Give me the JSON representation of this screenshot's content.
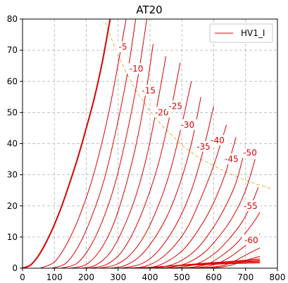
{
  "chart_data": {
    "type": "line",
    "title": "AT20",
    "xlabel": "",
    "ylabel": "",
    "xlim": [
      0,
      800
    ],
    "ylim": [
      0,
      80
    ],
    "xticks": [
      0,
      100,
      200,
      300,
      400,
      500,
      600,
      700,
      800
    ],
    "yticks": [
      0,
      10,
      20,
      30,
      40,
      50,
      60,
      70,
      80
    ],
    "grid": true,
    "legend": {
      "position": "top-right",
      "entries": [
        "HV1_I"
      ]
    },
    "colors": {
      "curve": "#dd0000",
      "dissipation": "#e8b040",
      "grid": "#b0b0b0"
    },
    "curve_labels": [
      {
        "text": "-5",
        "x": 315,
        "y": 71
      },
      {
        "text": "-10",
        "x": 357,
        "y": 64
      },
      {
        "text": "-15",
        "x": 396,
        "y": 57
      },
      {
        "text": "-20",
        "x": 437,
        "y": 50
      },
      {
        "text": "-25",
        "x": 480,
        "y": 52
      },
      {
        "text": "-30",
        "x": 518,
        "y": 46
      },
      {
        "text": "-35",
        "x": 568,
        "y": 39
      },
      {
        "text": "-40",
        "x": 612,
        "y": 41
      },
      {
        "text": "-45",
        "x": 656,
        "y": 35
      },
      {
        "text": "-50",
        "x": 714,
        "y": 37
      },
      {
        "text": "-55",
        "x": 716,
        "y": 20
      },
      {
        "text": "-60",
        "x": 718,
        "y": 9
      }
    ],
    "series": [
      {
        "name": "HV1_I",
        "bold": true,
        "x": [
          0,
          25,
          50,
          75,
          100,
          125,
          150,
          175,
          200,
          225,
          250,
          275
        ],
        "y": [
          0,
          1,
          4,
          8.5,
          14,
          20.5,
          28,
          36,
          45,
          54.5,
          66,
          80
        ]
      },
      {
        "x": [
          55,
          100,
          140,
          180,
          220,
          260,
          290,
          325
        ],
        "y": [
          0,
          2,
          8,
          17,
          29,
          45,
          60,
          80
        ]
      },
      {
        "x": [
          90,
          135,
          175,
          215,
          255,
          295,
          330,
          355
        ],
        "y": [
          0,
          1.5,
          7,
          16,
          28,
          45,
          63,
          80
        ]
      },
      {
        "x": [
          120,
          170,
          210,
          250,
          290,
          325,
          360,
          390
        ],
        "y": [
          0,
          1.5,
          6.5,
          15,
          27,
          42,
          60,
          80
        ]
      },
      {
        "x": [
          150,
          200,
          245,
          285,
          320,
          355,
          385,
          410
        ],
        "y": [
          0,
          1.2,
          6,
          14,
          25,
          39,
          55,
          72
        ]
      },
      {
        "x": [
          185,
          230,
          275,
          315,
          355,
          390,
          420,
          450
        ],
        "y": [
          0,
          1,
          5,
          12.5,
          23,
          36,
          51,
          68
        ]
      },
      {
        "x": [
          210,
          260,
          305,
          345,
          385,
          425,
          460,
          495
        ],
        "y": [
          0,
          1,
          4.5,
          11,
          20.5,
          33,
          48,
          66
        ]
      },
      {
        "x": [
          240,
          290,
          335,
          380,
          420,
          460,
          495,
          530
        ],
        "y": [
          0,
          1,
          4,
          10,
          18.5,
          30,
          44,
          60
        ]
      },
      {
        "x": [
          275,
          320,
          365,
          410,
          455,
          495,
          530,
          560
        ],
        "y": [
          0,
          0.8,
          3.5,
          9,
          17,
          27.5,
          40,
          55
        ]
      },
      {
        "x": [
          305,
          355,
          400,
          445,
          490,
          530,
          565,
          600
        ],
        "y": [
          0,
          0.8,
          3,
          8,
          15.5,
          25,
          37,
          52
        ]
      },
      {
        "x": [
          335,
          385,
          430,
          475,
          520,
          560,
          600,
          640
        ],
        "y": [
          0,
          0.6,
          2.8,
          7,
          13.5,
          22.5,
          33,
          46
        ]
      },
      {
        "x": [
          365,
          415,
          460,
          505,
          550,
          595,
          635,
          670
        ],
        "y": [
          0,
          0.5,
          2.5,
          6,
          12,
          20,
          30,
          42
        ]
      },
      {
        "x": [
          395,
          445,
          490,
          540,
          585,
          630,
          670,
          700
        ],
        "y": [
          0,
          0.5,
          2,
          5.5,
          11,
          18.5,
          27.5,
          39
        ]
      },
      {
        "x": [
          420,
          470,
          520,
          570,
          615,
          660,
          700,
          730
        ],
        "y": [
          0,
          0.4,
          1.8,
          5,
          10,
          16.5,
          25,
          35
        ]
      },
      {
        "x": [
          450,
          500,
          550,
          600,
          645,
          690,
          720,
          740
        ],
        "y": [
          0,
          0.4,
          1.5,
          4.5,
          9,
          15,
          21,
          26
        ]
      },
      {
        "x": [
          480,
          530,
          580,
          625,
          670,
          705,
          730,
          745
        ],
        "y": [
          0,
          0.3,
          1.3,
          4,
          7.8,
          12,
          15.5,
          18
        ]
      },
      {
        "x": [
          510,
          560,
          605,
          650,
          690,
          720,
          745
        ],
        "y": [
          0,
          0.3,
          1.2,
          3.5,
          6.5,
          9,
          11
        ]
      },
      {
        "x": [
          540,
          590,
          635,
          675,
          715,
          745
        ],
        "y": [
          0,
          0.3,
          1,
          2.8,
          5,
          6.5
        ]
      },
      {
        "x": [
          570,
          620,
          660,
          700,
          745
        ],
        "y": [
          0,
          0.3,
          1.1,
          2.5,
          3.8
        ]
      },
      {
        "x": [
          390,
          450,
          510,
          570,
          630,
          690,
          745
        ],
        "y": [
          0,
          0.6,
          1.1,
          1.6,
          2,
          2.5,
          3
        ]
      },
      {
        "x": [
          380,
          440,
          500,
          560,
          620,
          680,
          745
        ],
        "y": [
          0,
          0.5,
          1,
          1.4,
          1.8,
          2.2,
          2.6
        ]
      },
      {
        "x": [
          370,
          430,
          490,
          550,
          610,
          670,
          745
        ],
        "y": [
          0,
          0.45,
          0.9,
          1.3,
          1.6,
          2,
          2.3
        ]
      },
      {
        "x": [
          360,
          420,
          480,
          540,
          600,
          660,
          745
        ],
        "y": [
          0,
          0.4,
          0.8,
          1.1,
          1.4,
          1.7,
          2
        ]
      },
      {
        "x": [
          350,
          410,
          470,
          530,
          590,
          650,
          745
        ],
        "y": [
          0,
          0.35,
          0.7,
          0.95,
          1.2,
          1.45,
          1.7
        ]
      }
    ],
    "dissipation_curve": {
      "x": [
        260,
        280,
        300,
        320,
        340,
        360,
        380,
        400,
        420,
        440,
        460,
        480,
        500,
        520,
        540,
        560,
        580,
        600,
        620,
        640,
        660,
        680,
        700,
        720,
        740,
        760,
        780
      ],
      "y": [
        79,
        73.5,
        68.5,
        64,
        60,
        56.5,
        53.5,
        50.5,
        48,
        45.5,
        43.5,
        41.5,
        39.5,
        38,
        36.5,
        35,
        34,
        33,
        31.8,
        30.8,
        30,
        29,
        28.2,
        27.5,
        26.8,
        26.2,
        25.5
      ]
    }
  }
}
